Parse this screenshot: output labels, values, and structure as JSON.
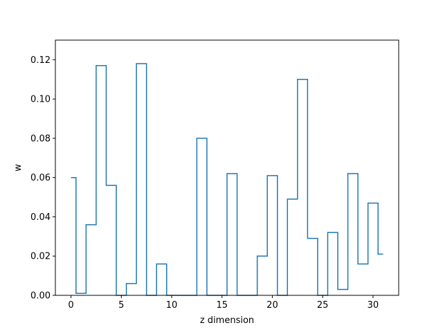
{
  "chart_data": {
    "type": "line",
    "drawstyle": "steps-mid",
    "title": "",
    "xlabel": "z dimension",
    "ylabel": "w",
    "xlim": [
      -1.55,
      32.55
    ],
    "ylim": [
      0.0,
      0.13
    ],
    "xticks": [
      0,
      5,
      10,
      15,
      20,
      25,
      30
    ],
    "yticks": [
      0.0,
      0.02,
      0.04,
      0.06,
      0.08,
      0.1,
      0.12
    ],
    "ytick_labels": [
      "0.00",
      "0.02",
      "0.04",
      "0.06",
      "0.08",
      "0.10",
      "0.12"
    ],
    "grid": false,
    "legend": "none",
    "series_color": "#1f77b4",
    "series": [
      {
        "x": [
          0,
          1,
          2,
          3,
          4,
          5,
          6,
          7,
          8,
          9,
          10,
          11,
          12,
          13,
          14,
          15,
          16,
          17,
          18,
          19,
          20,
          21,
          22,
          23,
          24,
          25,
          26,
          27,
          28,
          29,
          30,
          31
        ],
        "values": [
          0.06,
          0.001,
          0.036,
          0.117,
          0.056,
          0.0,
          0.006,
          0.118,
          0.0,
          0.016,
          0.0,
          0.0,
          0.0,
          0.08,
          0.0,
          0.0,
          0.062,
          0.0,
          0.0,
          0.02,
          0.061,
          0.0,
          0.049,
          0.11,
          0.029,
          0.0,
          0.032,
          0.003,
          0.062,
          0.016,
          0.047,
          0.021
        ]
      }
    ]
  }
}
